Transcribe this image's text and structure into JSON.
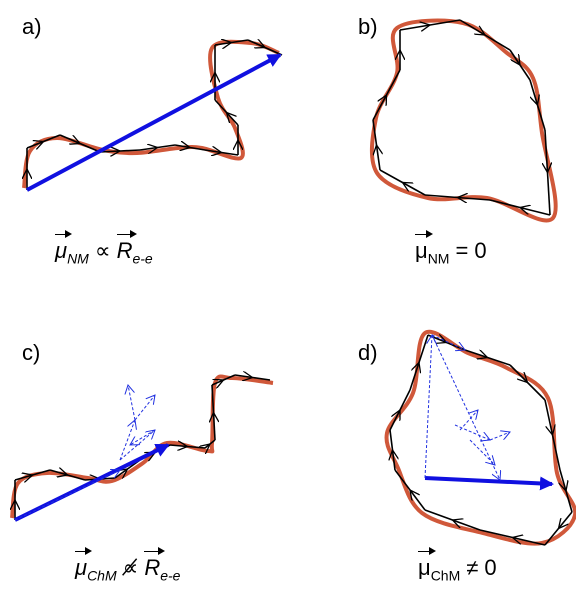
{
  "panels": [
    {
      "label": "a)",
      "caption": {
        "lhs": "μ",
        "lhs_sub": "NM",
        "relation": "∝",
        "rhs": "R",
        "rhs_sub": "e-e"
      }
    },
    {
      "label": "b)",
      "caption": {
        "lhs": "μ",
        "lhs_sub": "NM",
        "relation": "= 0"
      }
    },
    {
      "label": "c)",
      "caption": {
        "lhs": "μ",
        "lhs_sub": "ChM",
        "relation": "∝̸",
        "rhs": "R",
        "rhs_sub": "e-e"
      }
    },
    {
      "label": "d)",
      "caption": {
        "lhs": "μ",
        "lhs_sub": "ChM",
        "relation": "≠ 0"
      }
    }
  ]
}
